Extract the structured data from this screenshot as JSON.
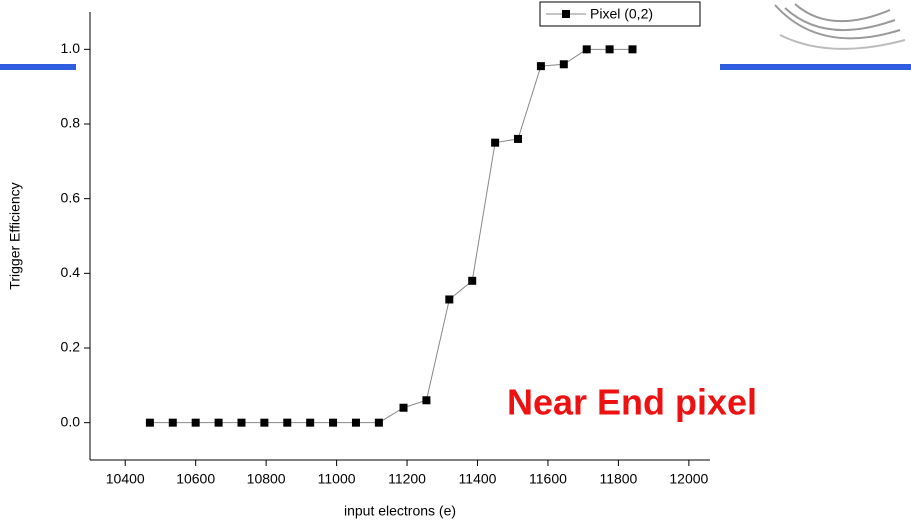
{
  "chart_data": {
    "type": "line",
    "x_label": "input electrons (e)",
    "y_label": "Trigger Efficiency",
    "annotation": "Near End pixel",
    "x": [
      10470,
      10535,
      10600,
      10665,
      10730,
      10795,
      10860,
      10925,
      10990,
      11055,
      11120,
      11190,
      11255,
      11320,
      11385,
      11450,
      11515,
      11580,
      11645,
      11710,
      11775,
      11840
    ],
    "series": [
      {
        "name": "Pixel (0,2)",
        "color": "#000000",
        "values": [
          0,
          0,
          0,
          0,
          0,
          0,
          0,
          0,
          0,
          0,
          0,
          0.04,
          0.06,
          0.33,
          0.38,
          0.75,
          0.76,
          0.955,
          0.96,
          1.0,
          1.0,
          1.0
        ]
      }
    ],
    "xlim": [
      10300,
      12060
    ],
    "xticks": [
      10400,
      10600,
      10800,
      11000,
      11200,
      11400,
      11600,
      11800,
      12000
    ],
    "ylim": [
      -0.1,
      1.1
    ],
    "yticks": [
      {
        "value": 0,
        "label": "0.0"
      },
      {
        "value": 0.2,
        "label": "0.2"
      },
      {
        "value": 0.4,
        "label": "0.4"
      },
      {
        "value": 0.6,
        "label": "0.6"
      },
      {
        "value": 0.8,
        "label": "0.8"
      },
      {
        "value": 1,
        "label": "1.0"
      }
    ],
    "legend": "top right",
    "grid": false
  }
}
